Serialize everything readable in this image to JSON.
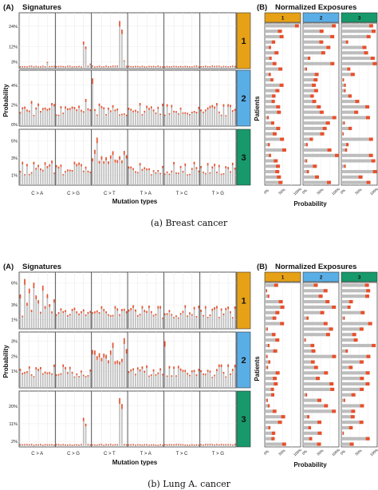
{
  "chart_data": [
    {
      "type": "bar",
      "figure": "a",
      "caption": "(a) Breast cancer",
      "panel_a": {
        "label": "(A)",
        "title": "Signatures",
        "ylabel": "Probability",
        "xlabel": "Mutation types",
        "mutation_types": [
          "C > A",
          "C > G",
          "C > T",
          "T > A",
          "T > C",
          "T > G"
        ],
        "signatures": [
          {
            "name": "1",
            "color": "#e6a117",
            "ticks": [
              "24%",
              "12%",
              "3%"
            ],
            "ticks_y": [
              24,
              12,
              3
            ],
            "ymax": 30,
            "spikes": [
              {
                "g": 1,
                "i": 12,
                "v": 15
              },
              {
                "g": 1,
                "i": 13,
                "v": 12
              },
              {
                "g": 2,
                "i": 12,
                "v": 27
              },
              {
                "g": 2,
                "i": 13,
                "v": 22
              },
              {
                "g": 0,
                "i": 12,
                "v": 3
              },
              {
                "g": 2,
                "i": 14,
                "v": 4
              },
              {
                "g": 1,
                "i": 15,
                "v": 2
              }
            ]
          },
          {
            "name": "2",
            "color": "#5aaee6",
            "ticks": [
              "4%",
              "2%",
              "0%"
            ],
            "ticks_y": [
              4,
              2,
              0
            ],
            "ymax": 5.2,
            "spikes": [
              {
                "g": 2,
                "i": 0,
                "v": 4.7
              },
              {
                "g": 1,
                "i": 13,
                "v": 2.6
              },
              {
                "g": 0,
                "i": 5,
                "v": 2.4
              }
            ]
          },
          {
            "name": "3",
            "color": "#17996b",
            "ticks": [
              "5%",
              "3%",
              "1%"
            ],
            "ticks_y": [
              5,
              3,
              1
            ],
            "ymax": 6,
            "spikes": [
              {
                "g": 2,
                "i": 2,
                "v": 5.4
              },
              {
                "g": 2,
                "i": 9,
                "v": 3.8
              },
              {
                "g": 0,
                "i": 14,
                "v": 2.7
              }
            ]
          }
        ]
      },
      "panel_b": {
        "label": "(B)",
        "title": "Normalized Exposures",
        "ylabel": "Patients",
        "xlabel": "Probability",
        "xticks": [
          "0%",
          "50%",
          "100%"
        ],
        "strips": [
          {
            "name": "1",
            "color": "#e6a117"
          },
          {
            "name": "2",
            "color": "#5aaee6"
          },
          {
            "name": "3",
            "color": "#17996b"
          }
        ],
        "patients": 30
      }
    },
    {
      "type": "bar",
      "figure": "b",
      "caption": "(b) Lung A. cancer",
      "panel_a": {
        "label": "(A)",
        "title": "Signatures",
        "ylabel": "Probability",
        "xlabel": "Mutation types",
        "mutation_types": [
          "C > A",
          "C > G",
          "C > T",
          "T > A",
          "T > C",
          "T > G"
        ],
        "signatures": [
          {
            "name": "1",
            "color": "#e6a117",
            "ticks": [
              "6%",
              "3%",
              "1%"
            ],
            "ticks_y": [
              6,
              3,
              1
            ],
            "ymax": 7,
            "spikes": [
              {
                "g": 0,
                "i": 2,
                "v": 6.5
              },
              {
                "g": 0,
                "i": 6,
                "v": 6
              },
              {
                "g": 0,
                "i": 10,
                "v": 5.6
              },
              {
                "g": 0,
                "i": 4,
                "v": 5.2
              }
            ]
          },
          {
            "name": "2",
            "color": "#5aaee6",
            "ticks": [
              "3%",
              "2%",
              "1%"
            ],
            "ticks_y": [
              3,
              2,
              1
            ],
            "ymax": 3.4,
            "spikes": [
              {
                "g": 2,
                "i": 14,
                "v": 3.2
              },
              {
                "g": 4,
                "i": 0,
                "v": 3.0
              },
              {
                "g": 2,
                "i": 9,
                "v": 2.9
              }
            ]
          },
          {
            "name": "3",
            "color": "#17996b",
            "ticks": [
              "20%",
              "11%",
              "2%"
            ],
            "ticks_y": [
              20,
              11,
              2
            ],
            "ymax": 26,
            "spikes": [
              {
                "g": 2,
                "i": 12,
                "v": 24
              },
              {
                "g": 2,
                "i": 13,
                "v": 21
              },
              {
                "g": 1,
                "i": 12,
                "v": 14
              },
              {
                "g": 1,
                "i": 13,
                "v": 11
              }
            ]
          }
        ]
      },
      "panel_b": {
        "label": "(B)",
        "title": "Normalized Exposures",
        "ylabel": "Patients",
        "xlabel": "Probability",
        "xticks": [
          "0%",
          "50%",
          "100%"
        ],
        "strips": [
          {
            "name": "1",
            "color": "#e6a117"
          },
          {
            "name": "2",
            "color": "#5aaee6"
          },
          {
            "name": "3",
            "color": "#17996b"
          }
        ],
        "patients": 30
      }
    }
  ]
}
